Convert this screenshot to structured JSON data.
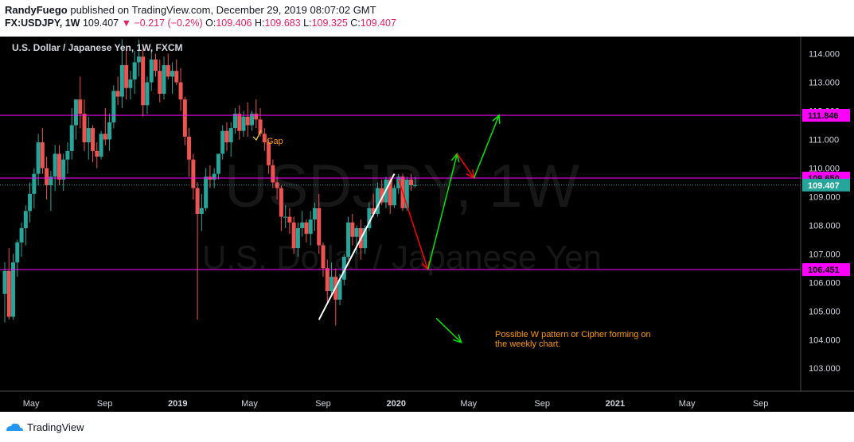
{
  "header": {
    "author": "RandyFuego",
    "published_text": "published on TradingView.com, December 29, 2019 08:07:02 GMT",
    "symbol": "FX:USDJPY, 1W",
    "last": "109.407",
    "change": "▼ −0.217 (−0.2%)",
    "o_label": "O:",
    "o_val": "109.406",
    "h_label": "H:",
    "h_val": "109.683",
    "l_label": "L:",
    "l_val": "109.325",
    "c_label": "C:",
    "c_val": "109.407"
  },
  "chart_title": "U.S. Dollar / Japanese Yen, 1W, FXCM",
  "watermark": {
    "line1": "USDJPY, 1W",
    "line2": "U.S. Dollar / Japanese Yen"
  },
  "footer": {
    "brand": "TradingView",
    "icon": "tradingview-logo"
  },
  "colors": {
    "up": "#26a69a",
    "down": "#ef5350",
    "hline": "#ff00ff",
    "green_arrow": "#00e600",
    "red_arrow": "#ff0000",
    "annotation": "#ff9800",
    "trendline": "#ffffff",
    "background": "#000000"
  },
  "chart_data": {
    "type": "candlestick",
    "title": "U.S. Dollar / Japanese Yen, 1W, FXCM",
    "xlabel": "",
    "ylabel": "",
    "x_ticks": [
      "May",
      "Sep",
      "2019",
      "May",
      "Sep",
      "2020",
      "May",
      "Sep",
      "2021",
      "May",
      "Sep"
    ],
    "y_ticks": [
      "103.000",
      "104.000",
      "105.000",
      "106.000",
      "107.000",
      "108.000",
      "109.000",
      "110.000",
      "111.000",
      "112.000",
      "113.000",
      "114.000"
    ],
    "ylim": [
      102.2,
      114.6
    ],
    "x_range": [
      "2018-03-18",
      "2021-11-07"
    ],
    "horizontal_levels": [
      {
        "value": 111.846,
        "label": "111.846"
      },
      {
        "value": 109.65,
        "label": "109.650"
      },
      {
        "value": 106.451,
        "label": "106.451"
      }
    ],
    "last_price": {
      "value": 109.407,
      "label": "109.407"
    },
    "annotations": [
      {
        "text": "Gap"
      },
      {
        "text": "Possible W pattern or Cipher forming on\nthe weekly chart."
      }
    ],
    "trendline": {
      "from": [
        "2019-08-25",
        104.7
      ],
      "to": [
        "2019-12-29",
        109.8
      ]
    },
    "projection_path": [
      {
        "from": [
          "2020-01-05",
          109.6
        ],
        "to": [
          "2020-02-23",
          106.45
        ],
        "color": "red"
      },
      {
        "from": [
          "2020-02-23",
          106.45
        ],
        "to": [
          "2020-04-12",
          110.5
        ],
        "color": "green"
      },
      {
        "from": [
          "2020-04-12",
          110.5
        ],
        "to": [
          "2020-05-10",
          109.65
        ],
        "color": "red"
      },
      {
        "from": [
          "2020-05-10",
          109.65
        ],
        "to": [
          "2020-06-21",
          111.85
        ],
        "color": "green"
      },
      {
        "from": [
          "2020-03-08",
          104.75
        ],
        "to": [
          "2020-04-19",
          103.9
        ],
        "color": "green"
      }
    ],
    "candles": [
      {
        "o": 105.6,
        "h": 106.7,
        "l": 104.6,
        "c": 106.4
      },
      {
        "o": 106.4,
        "h": 107.2,
        "l": 104.7,
        "c": 104.8
      },
      {
        "o": 104.8,
        "h": 107.0,
        "l": 104.7,
        "c": 106.7
      },
      {
        "o": 106.7,
        "h": 107.5,
        "l": 106.2,
        "c": 107.4
      },
      {
        "o": 107.4,
        "h": 108.1,
        "l": 106.9,
        "c": 107.9
      },
      {
        "o": 107.9,
        "h": 108.7,
        "l": 107.3,
        "c": 108.5
      },
      {
        "o": 108.5,
        "h": 109.5,
        "l": 108.1,
        "c": 109.1
      },
      {
        "o": 109.1,
        "h": 110.0,
        "l": 108.6,
        "c": 109.8
      },
      {
        "o": 109.8,
        "h": 111.2,
        "l": 109.4,
        "c": 110.9
      },
      {
        "o": 110.9,
        "h": 111.4,
        "l": 109.8,
        "c": 110.0
      },
      {
        "o": 110.0,
        "h": 110.4,
        "l": 108.9,
        "c": 109.4
      },
      {
        "o": 109.4,
        "h": 109.9,
        "l": 108.5,
        "c": 109.7
      },
      {
        "o": 109.7,
        "h": 110.8,
        "l": 109.2,
        "c": 110.5
      },
      {
        "o": 110.5,
        "h": 110.8,
        "l": 109.4,
        "c": 109.6
      },
      {
        "o": 109.6,
        "h": 110.5,
        "l": 109.2,
        "c": 110.3
      },
      {
        "o": 110.3,
        "h": 110.9,
        "l": 109.8,
        "c": 110.6
      },
      {
        "o": 110.6,
        "h": 112.1,
        "l": 110.3,
        "c": 111.5
      },
      {
        "o": 111.5,
        "h": 112.4,
        "l": 111.0,
        "c": 112.4
      },
      {
        "o": 112.4,
        "h": 113.2,
        "l": 111.4,
        "c": 111.9
      },
      {
        "o": 111.9,
        "h": 112.4,
        "l": 110.6,
        "c": 110.9
      },
      {
        "o": 110.9,
        "h": 111.8,
        "l": 110.3,
        "c": 111.4
      },
      {
        "o": 111.4,
        "h": 111.5,
        "l": 110.2,
        "c": 110.6
      },
      {
        "o": 110.6,
        "h": 110.9,
        "l": 110.0,
        "c": 110.4
      },
      {
        "o": 110.4,
        "h": 111.3,
        "l": 110.3,
        "c": 111.2
      },
      {
        "o": 111.2,
        "h": 112.1,
        "l": 110.8,
        "c": 111.0
      },
      {
        "o": 111.0,
        "h": 111.9,
        "l": 110.6,
        "c": 111.6
      },
      {
        "o": 111.6,
        "h": 112.9,
        "l": 111.4,
        "c": 112.7
      },
      {
        "o": 112.7,
        "h": 113.2,
        "l": 112.2,
        "c": 112.5
      },
      {
        "o": 112.5,
        "h": 114.5,
        "l": 112.1,
        "c": 113.6
      },
      {
        "o": 113.6,
        "h": 114.2,
        "l": 112.4,
        "c": 112.8
      },
      {
        "o": 112.8,
        "h": 113.4,
        "l": 112.4,
        "c": 113.1
      },
      {
        "o": 113.1,
        "h": 114.1,
        "l": 112.6,
        "c": 113.7
      },
      {
        "o": 113.7,
        "h": 114.5,
        "l": 113.2,
        "c": 113.9
      },
      {
        "o": 113.9,
        "h": 114.2,
        "l": 111.8,
        "c": 112.2
      },
      {
        "o": 112.2,
        "h": 113.2,
        "l": 111.9,
        "c": 113.0
      },
      {
        "o": 113.0,
        "h": 114.1,
        "l": 112.7,
        "c": 113.8
      },
      {
        "o": 113.8,
        "h": 114.0,
        "l": 113.2,
        "c": 113.4
      },
      {
        "o": 113.4,
        "h": 113.8,
        "l": 112.3,
        "c": 112.6
      },
      {
        "o": 112.6,
        "h": 113.9,
        "l": 112.4,
        "c": 113.6
      },
      {
        "o": 113.6,
        "h": 114.0,
        "l": 113.1,
        "c": 113.2
      },
      {
        "o": 113.2,
        "h": 113.7,
        "l": 112.6,
        "c": 113.4
      },
      {
        "o": 113.4,
        "h": 113.8,
        "l": 112.9,
        "c": 113.0
      },
      {
        "o": 113.0,
        "h": 113.5,
        "l": 112.0,
        "c": 112.4
      },
      {
        "o": 112.4,
        "h": 112.5,
        "l": 110.8,
        "c": 111.1
      },
      {
        "o": 111.1,
        "h": 111.4,
        "l": 109.7,
        "c": 110.3
      },
      {
        "o": 110.3,
        "h": 110.5,
        "l": 108.9,
        "c": 109.3
      },
      {
        "o": 109.3,
        "h": 109.5,
        "l": 104.7,
        "c": 108.4
      },
      {
        "o": 108.4,
        "h": 109.1,
        "l": 107.8,
        "c": 108.6
      },
      {
        "o": 108.6,
        "h": 110.0,
        "l": 108.5,
        "c": 109.7
      },
      {
        "o": 109.7,
        "h": 110.1,
        "l": 109.3,
        "c": 109.6
      },
      {
        "o": 109.6,
        "h": 110.0,
        "l": 109.3,
        "c": 109.8
      },
      {
        "o": 109.8,
        "h": 110.5,
        "l": 109.6,
        "c": 110.5
      },
      {
        "o": 110.5,
        "h": 111.5,
        "l": 110.3,
        "c": 111.3
      },
      {
        "o": 111.3,
        "h": 111.6,
        "l": 110.6,
        "c": 110.9
      },
      {
        "o": 110.9,
        "h": 111.6,
        "l": 110.4,
        "c": 111.4
      },
      {
        "o": 111.4,
        "h": 112.1,
        "l": 111.2,
        "c": 111.9
      },
      {
        "o": 111.9,
        "h": 112.2,
        "l": 111.0,
        "c": 111.3
      },
      {
        "o": 111.3,
        "h": 112.0,
        "l": 111.1,
        "c": 111.8
      },
      {
        "o": 111.8,
        "h": 112.3,
        "l": 111.1,
        "c": 111.5
      },
      {
        "o": 111.5,
        "h": 112.0,
        "l": 111.3,
        "c": 111.9
      },
      {
        "o": 111.9,
        "h": 112.4,
        "l": 111.4,
        "c": 111.7
      },
      {
        "o": 111.7,
        "h": 112.1,
        "l": 111.1,
        "c": 111.2
      },
      {
        "o": 111.2,
        "h": 111.4,
        "l": 110.6,
        "c": 110.9
      },
      {
        "o": 110.9,
        "h": 111.0,
        "l": 109.8,
        "c": 110.1
      },
      {
        "o": 110.1,
        "h": 110.3,
        "l": 109.3,
        "c": 109.5
      },
      {
        "o": 109.5,
        "h": 109.7,
        "l": 108.9,
        "c": 109.3
      },
      {
        "o": 109.3,
        "h": 109.4,
        "l": 107.8,
        "c": 108.3
      },
      {
        "o": 108.3,
        "h": 108.7,
        "l": 107.9,
        "c": 108.3
      },
      {
        "o": 108.3,
        "h": 108.6,
        "l": 107.7,
        "c": 108.1
      },
      {
        "o": 108.1,
        "h": 108.3,
        "l": 107.0,
        "c": 107.2
      },
      {
        "o": 107.2,
        "h": 108.1,
        "l": 106.9,
        "c": 107.9
      },
      {
        "o": 107.9,
        "h": 108.5,
        "l": 107.6,
        "c": 108.1
      },
      {
        "o": 108.1,
        "h": 108.2,
        "l": 107.4,
        "c": 107.7
      },
      {
        "o": 107.7,
        "h": 108.5,
        "l": 107.3,
        "c": 108.2
      },
      {
        "o": 108.2,
        "h": 108.8,
        "l": 107.8,
        "c": 108.6
      },
      {
        "o": 108.6,
        "h": 109.1,
        "l": 107.0,
        "c": 107.3
      },
      {
        "o": 107.3,
        "h": 107.4,
        "l": 106.2,
        "c": 106.5
      },
      {
        "o": 106.5,
        "h": 106.8,
        "l": 105.3,
        "c": 105.7
      },
      {
        "o": 105.7,
        "h": 106.7,
        "l": 105.5,
        "c": 106.2
      },
      {
        "o": 106.2,
        "h": 106.5,
        "l": 104.5,
        "c": 105.4
      },
      {
        "o": 105.4,
        "h": 106.3,
        "l": 105.2,
        "c": 106.1
      },
      {
        "o": 106.1,
        "h": 107.0,
        "l": 105.9,
        "c": 106.9
      },
      {
        "o": 106.9,
        "h": 108.3,
        "l": 106.8,
        "c": 108.1
      },
      {
        "o": 108.1,
        "h": 108.4,
        "l": 107.3,
        "c": 107.6
      },
      {
        "o": 107.6,
        "h": 108.0,
        "l": 107.0,
        "c": 107.9
      },
      {
        "o": 107.9,
        "h": 108.2,
        "l": 106.8,
        "c": 107.2
      },
      {
        "o": 107.2,
        "h": 108.0,
        "l": 107.0,
        "c": 107.9
      },
      {
        "o": 107.9,
        "h": 108.8,
        "l": 107.8,
        "c": 108.6
      },
      {
        "o": 108.6,
        "h": 109.1,
        "l": 108.3,
        "c": 108.4
      },
      {
        "o": 108.4,
        "h": 109.5,
        "l": 108.3,
        "c": 109.3
      },
      {
        "o": 109.3,
        "h": 109.6,
        "l": 108.7,
        "c": 108.8
      },
      {
        "o": 108.8,
        "h": 109.7,
        "l": 108.6,
        "c": 109.6
      },
      {
        "o": 109.6,
        "h": 109.7,
        "l": 108.4,
        "c": 108.7
      },
      {
        "o": 108.7,
        "h": 109.4,
        "l": 108.6,
        "c": 109.3
      },
      {
        "o": 109.3,
        "h": 109.8,
        "l": 109.1,
        "c": 109.7
      },
      {
        "o": 109.7,
        "h": 109.8,
        "l": 108.5,
        "c": 108.6
      },
      {
        "o": 108.6,
        "h": 109.7,
        "l": 108.5,
        "c": 109.6
      },
      {
        "o": 109.6,
        "h": 109.8,
        "l": 109.2,
        "c": 109.4
      },
      {
        "o": 109.406,
        "h": 109.683,
        "l": 109.325,
        "c": 109.407
      }
    ]
  },
  "price_axis_labels": [
    "103.000",
    "104.000",
    "105.000",
    "106.000",
    "107.000",
    "108.000",
    "109.000",
    "110.000",
    "111.000",
    "112.000",
    "113.000",
    "114.000"
  ]
}
